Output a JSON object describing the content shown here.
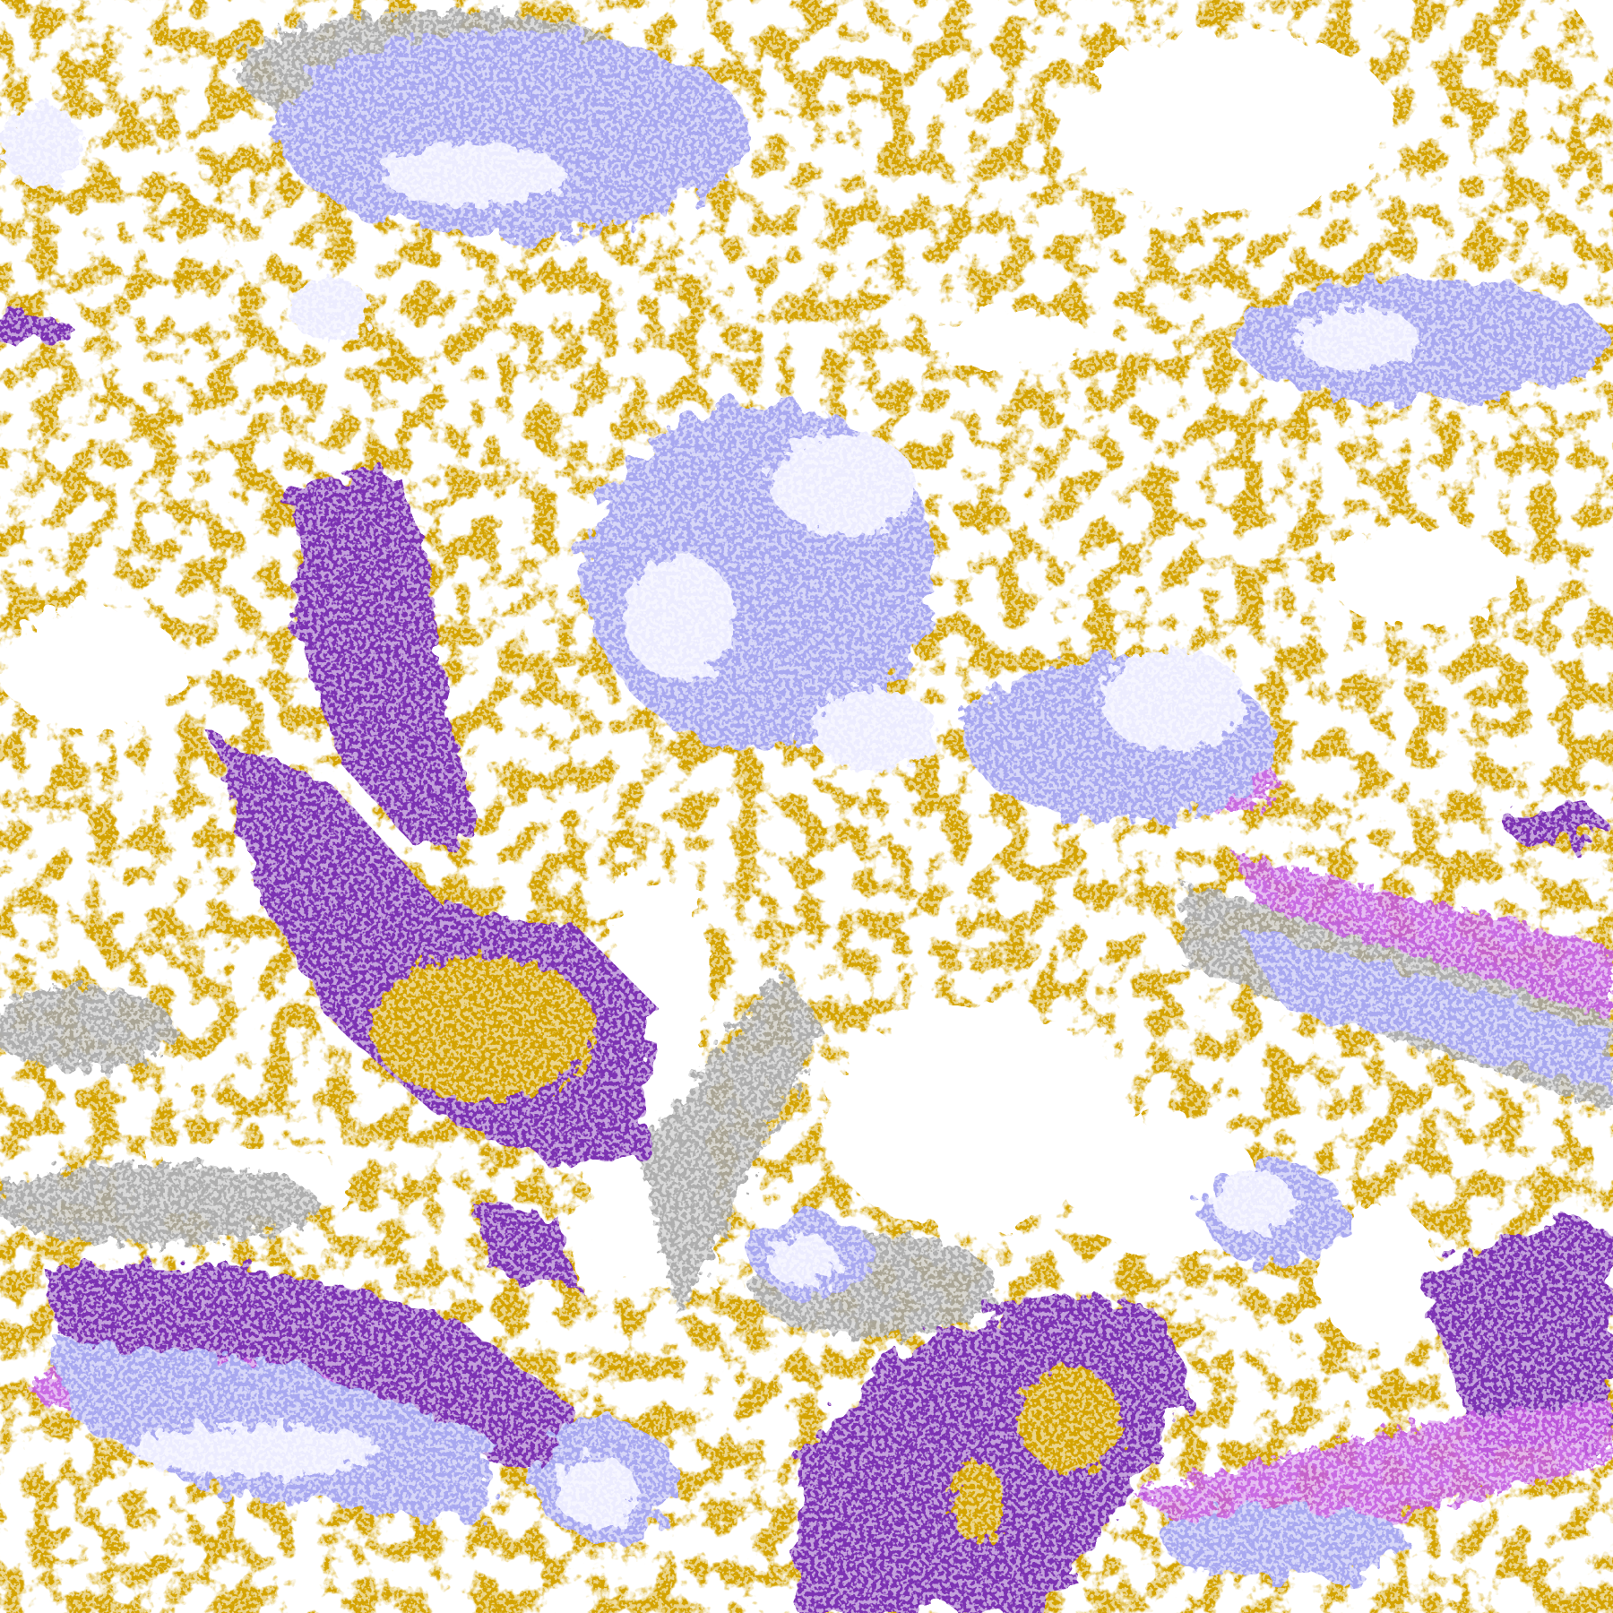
{
  "image": {
    "kind": "satellite cloud-type classification",
    "palette": {
      "clear": "#ffffff",
      "low_cloud": "#d4a300",
      "mid_cloud": "#7b33b3",
      "high_thin": "#c45ce0",
      "high_thick": "#a8a8f0",
      "very_high": "#ececff",
      "fractional": "#a6a6a6"
    }
  }
}
